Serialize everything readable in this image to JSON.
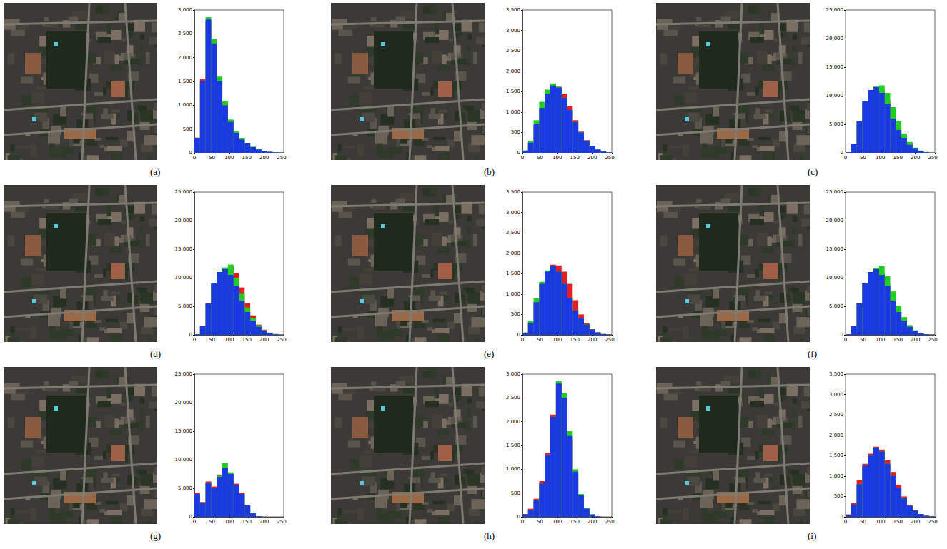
{
  "chart_data": [
    {
      "type": "histogram",
      "title": "(a)",
      "bins": [
        0,
        16,
        32,
        48,
        64,
        80,
        96,
        112,
        128,
        144,
        160,
        176,
        192,
        208,
        224,
        240,
        256
      ],
      "xlim": [
        0,
        256
      ],
      "xticks": [
        0,
        50,
        100,
        150,
        200,
        250
      ],
      "ylim": [
        0,
        3000
      ],
      "yticks": [
        0,
        500,
        1000,
        1500,
        2000,
        2500,
        3000
      ],
      "grid": false,
      "series": [
        {
          "color": "#e02020",
          "values": [
            320,
            1550,
            2750,
            2350,
            1550,
            1050,
            680,
            430,
            290,
            200,
            120,
            70,
            40,
            20,
            10,
            5
          ]
        },
        {
          "color": "#22cc22",
          "values": [
            280,
            1450,
            2850,
            2400,
            1600,
            1080,
            700,
            450,
            300,
            210,
            130,
            75,
            40,
            20,
            10,
            5
          ]
        },
        {
          "color": "#1a3adf",
          "values": [
            300,
            1500,
            2800,
            2300,
            1500,
            1000,
            650,
            420,
            280,
            200,
            120,
            70,
            40,
            20,
            10,
            5
          ]
        }
      ]
    },
    {
      "type": "histogram",
      "title": "(b)",
      "bins": [
        0,
        16,
        32,
        48,
        64,
        80,
        96,
        112,
        128,
        144,
        160,
        176,
        192,
        208,
        224,
        240,
        256
      ],
      "xlim": [
        0,
        256
      ],
      "xticks": [
        0,
        50,
        100,
        150,
        200,
        250
      ],
      "ylim": [
        0,
        3500
      ],
      "yticks": [
        0,
        500,
        1000,
        1500,
        2000,
        2500,
        3000,
        3500
      ],
      "grid": false,
      "series": [
        {
          "color": "#e02020",
          "values": [
            50,
            240,
            680,
            1080,
            1420,
            1640,
            1620,
            1450,
            1150,
            800,
            520,
            310,
            170,
            80,
            30,
            10
          ]
        },
        {
          "color": "#22cc22",
          "values": [
            60,
            300,
            800,
            1250,
            1550,
            1700,
            1620,
            1350,
            1050,
            750,
            500,
            300,
            170,
            80,
            30,
            10
          ]
        },
        {
          "color": "#1a3adf",
          "values": [
            50,
            250,
            700,
            1100,
            1450,
            1650,
            1600,
            1350,
            1050,
            750,
            500,
            300,
            170,
            80,
            30,
            10
          ]
        }
      ]
    },
    {
      "type": "histogram",
      "title": "(c)",
      "bins": [
        0,
        16,
        32,
        48,
        64,
        80,
        96,
        112,
        128,
        144,
        160,
        176,
        192,
        208,
        224,
        240,
        256
      ],
      "xlim": [
        0,
        256
      ],
      "xticks": [
        0,
        50,
        100,
        150,
        200,
        250
      ],
      "ylim": [
        0,
        25000
      ],
      "yticks": [
        0,
        5000,
        10000,
        15000,
        20000,
        25000
      ],
      "grid": false,
      "series": [
        {
          "color": "#e02020",
          "values": [
            100,
            1500,
            5400,
            8900,
            11000,
            11500,
            11000,
            9200,
            6800,
            4600,
            2900,
            1600,
            800,
            350,
            120,
            30
          ]
        },
        {
          "color": "#22cc22",
          "values": [
            100,
            1500,
            5500,
            9000,
            11000,
            11600,
            11800,
            10500,
            8000,
            5500,
            3400,
            1900,
            900,
            400,
            150,
            40
          ]
        },
        {
          "color": "#1a3adf",
          "values": [
            100,
            1500,
            5500,
            9000,
            11000,
            11500,
            10500,
            8500,
            6000,
            4000,
            2500,
            1400,
            700,
            300,
            100,
            30
          ]
        }
      ]
    },
    {
      "type": "histogram",
      "title": "(d)",
      "bins": [
        0,
        16,
        32,
        48,
        64,
        80,
        96,
        112,
        128,
        144,
        160,
        176,
        192,
        208,
        224,
        240,
        256
      ],
      "xlim": [
        0,
        256
      ],
      "xticks": [
        0,
        50,
        100,
        150,
        200,
        250
      ],
      "ylim": [
        0,
        25000
      ],
      "yticks": [
        0,
        5000,
        10000,
        15000,
        20000,
        25000
      ],
      "grid": false,
      "series": [
        {
          "color": "#e02020",
          "values": [
            100,
            1500,
            5500,
            9000,
            11000,
            11600,
            12000,
            10800,
            8300,
            5600,
            3400,
            1800,
            900,
            400,
            150,
            40
          ]
        },
        {
          "color": "#22cc22",
          "values": [
            100,
            1500,
            5500,
            9000,
            11000,
            11800,
            12300,
            10000,
            7200,
            4800,
            3000,
            1700,
            800,
            350,
            120,
            30
          ]
        },
        {
          "color": "#1a3adf",
          "values": [
            100,
            1500,
            5500,
            9000,
            11000,
            11500,
            10500,
            8500,
            6000,
            4000,
            2500,
            1400,
            700,
            300,
            100,
            30
          ]
        }
      ]
    },
    {
      "type": "histogram",
      "title": "(e)",
      "bins": [
        0,
        16,
        32,
        48,
        64,
        80,
        96,
        112,
        128,
        144,
        160,
        176,
        192,
        208,
        224,
        240,
        256
      ],
      "xlim": [
        0,
        256
      ],
      "xticks": [
        0,
        50,
        100,
        150,
        200,
        250
      ],
      "ylim": [
        0,
        3500
      ],
      "yticks": [
        0,
        500,
        1000,
        1500,
        2000,
        2500,
        3000,
        3500
      ],
      "grid": false,
      "series": [
        {
          "color": "#e02020",
          "values": [
            50,
            300,
            800,
            1250,
            1550,
            1720,
            1700,
            1550,
            1250,
            850,
            500,
            280,
            140,
            60,
            20,
            8
          ]
        },
        {
          "color": "#22cc22",
          "values": [
            60,
            350,
            900,
            1300,
            1580,
            1700,
            1550,
            1250,
            900,
            600,
            400,
            250,
            130,
            60,
            20,
            8
          ]
        },
        {
          "color": "#1a3adf",
          "values": [
            50,
            300,
            800,
            1250,
            1550,
            1700,
            1550,
            1250,
            900,
            600,
            400,
            250,
            130,
            60,
            20,
            8
          ]
        }
      ]
    },
    {
      "type": "histogram",
      "title": "(f)",
      "bins": [
        0,
        16,
        32,
        48,
        64,
        80,
        96,
        112,
        128,
        144,
        160,
        176,
        192,
        208,
        224,
        240,
        256
      ],
      "xlim": [
        0,
        256
      ],
      "xticks": [
        0,
        50,
        100,
        150,
        200,
        250
      ],
      "ylim": [
        0,
        25000
      ],
      "yticks": [
        0,
        5000,
        10000,
        15000,
        20000,
        25000
      ],
      "grid": false,
      "series": [
        {
          "color": "#e02020",
          "values": [
            100,
            1500,
            5500,
            9000,
            11000,
            11500,
            10800,
            8800,
            6300,
            4200,
            2600,
            1450,
            700,
            300,
            100,
            30
          ]
        },
        {
          "color": "#22cc22",
          "values": [
            100,
            1500,
            5500,
            9000,
            11000,
            11700,
            12000,
            10300,
            7600,
            5100,
            3100,
            1700,
            800,
            350,
            120,
            30
          ]
        },
        {
          "color": "#1a3adf",
          "values": [
            100,
            1500,
            5500,
            9000,
            11000,
            11500,
            10500,
            8500,
            6000,
            4000,
            2500,
            1400,
            700,
            300,
            100,
            30
          ]
        }
      ]
    },
    {
      "type": "histogram",
      "title": "(g)",
      "bins": [
        0,
        16,
        32,
        48,
        64,
        80,
        96,
        112,
        128,
        144,
        160,
        176,
        192,
        208,
        224,
        240,
        256
      ],
      "xlim": [
        0,
        256
      ],
      "xticks": [
        0,
        50,
        100,
        150,
        200,
        250
      ],
      "ylim": [
        0,
        25000
      ],
      "yticks": [
        0,
        5000,
        10000,
        15000,
        20000,
        25000
      ],
      "grid": false,
      "series": [
        {
          "color": "#e02020",
          "values": [
            4200,
            2600,
            6200,
            5300,
            7400,
            8500,
            7500,
            5800,
            4200,
            2100,
            650,
            120,
            20,
            0,
            0,
            0
          ]
        },
        {
          "color": "#22cc22",
          "values": [
            4000,
            2500,
            6000,
            5000,
            7200,
            9500,
            7800,
            5500,
            4000,
            2000,
            600,
            100,
            20,
            0,
            0,
            0
          ]
        },
        {
          "color": "#1a3adf",
          "values": [
            4000,
            2500,
            6000,
            5000,
            7000,
            8500,
            7500,
            5500,
            4000,
            2000,
            600,
            100,
            20,
            0,
            0,
            0
          ]
        }
      ]
    },
    {
      "type": "histogram",
      "title": "(h)",
      "bins": [
        0,
        16,
        32,
        48,
        64,
        80,
        96,
        112,
        128,
        144,
        160,
        176,
        192,
        208,
        224,
        240,
        256
      ],
      "xlim": [
        0,
        256
      ],
      "xticks": [
        0,
        50,
        100,
        150,
        200,
        250
      ],
      "ylim": [
        0,
        3000
      ],
      "yticks": [
        0,
        500,
        1000,
        1500,
        2000,
        2500,
        3000
      ],
      "grid": false,
      "series": [
        {
          "color": "#e02020",
          "values": [
            60,
            170,
            380,
            750,
            1350,
            2150,
            2800,
            2450,
            1650,
            900,
            420,
            160,
            45,
            10,
            0,
            0
          ]
        },
        {
          "color": "#22cc22",
          "values": [
            50,
            150,
            350,
            700,
            1300,
            2100,
            2850,
            2600,
            1800,
            1000,
            480,
            180,
            55,
            10,
            0,
            0
          ]
        },
        {
          "color": "#1a3adf",
          "values": [
            50,
            150,
            350,
            700,
            1300,
            2100,
            2800,
            2500,
            1700,
            950,
            450,
            170,
            50,
            10,
            0,
            0
          ]
        }
      ]
    },
    {
      "type": "histogram",
      "title": "(i)",
      "bins": [
        0,
        16,
        32,
        48,
        64,
        80,
        96,
        112,
        128,
        144,
        160,
        176,
        192,
        208,
        224,
        240,
        256
      ],
      "xlim": [
        0,
        256
      ],
      "xticks": [
        0,
        50,
        100,
        150,
        200,
        250
      ],
      "ylim": [
        0,
        3500
      ],
      "yticks": [
        0,
        500,
        1000,
        1500,
        2000,
        2500,
        3000,
        3500
      ],
      "grid": false,
      "series": [
        {
          "color": "#e02020",
          "values": [
            60,
            350,
            900,
            1300,
            1550,
            1720,
            1650,
            1400,
            1100,
            780,
            500,
            290,
            160,
            70,
            25,
            8
          ]
        },
        {
          "color": "#22cc22",
          "values": [
            50,
            300,
            800,
            1250,
            1500,
            1700,
            1600,
            1300,
            1000,
            700,
            450,
            270,
            150,
            70,
            25,
            8
          ]
        },
        {
          "color": "#1a3adf",
          "values": [
            50,
            300,
            800,
            1250,
            1500,
            1700,
            1600,
            1300,
            1000,
            700,
            450,
            270,
            150,
            70,
            25,
            8
          ]
        }
      ]
    }
  ]
}
